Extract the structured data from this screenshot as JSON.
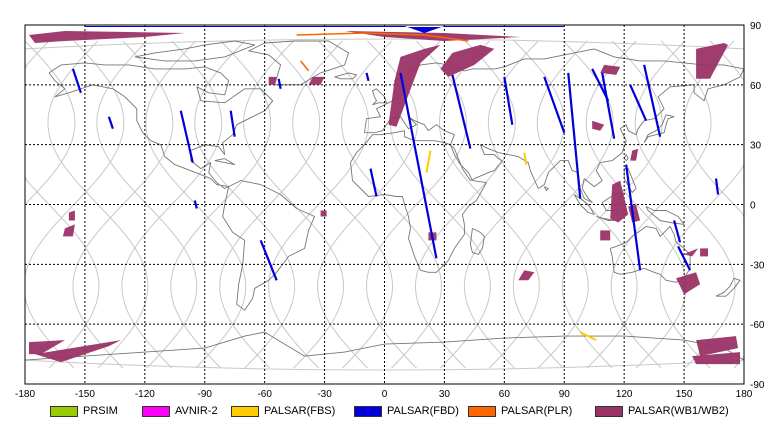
{
  "chart_data": {
    "type": "map",
    "projection": "equirectangular",
    "xlim": [
      -180,
      180
    ],
    "ylim": [
      -90,
      90
    ],
    "x_ticks": [
      "-180",
      "-150",
      "-120",
      "-90",
      "-60",
      "-30",
      "0",
      "30",
      "60",
      "90",
      "120",
      "150",
      "180"
    ],
    "y_ticks": [
      "90",
      "60",
      "30",
      "0",
      "-30",
      "-60",
      "-90"
    ],
    "grid": true,
    "legend_position": "bottom",
    "legend": [
      {
        "label": "PRSIM",
        "color": "#99cc00"
      },
      {
        "label": "AVNIR-2",
        "color": "#ff00ff"
      },
      {
        "label": "PALSAR(FBS)",
        "color": "#ffcc00"
      },
      {
        "label": "PALSAR(FBD)",
        "color": "#0000dd"
      },
      {
        "label": "PALSAR(PLR)",
        "color": "#ff6600"
      },
      {
        "label": "PALSAR(WB1/WB2)",
        "color": "#993366"
      }
    ],
    "fbd_strips": [
      [
        -156,
        68,
        -152,
        56
      ],
      [
        -138,
        44,
        -136,
        38
      ],
      [
        -102,
        47,
        -96,
        21
      ],
      [
        -77,
        47,
        -75,
        34
      ],
      [
        -62,
        -18,
        -54,
        -38
      ],
      [
        -7,
        18,
        -4,
        4
      ],
      [
        8,
        66,
        26,
        -27
      ],
      [
        34,
        65,
        43,
        28
      ],
      [
        60,
        64,
        64,
        40
      ],
      [
        80,
        64,
        90,
        36
      ],
      [
        92,
        66,
        98,
        3
      ],
      [
        104,
        68,
        112,
        52
      ],
      [
        109,
        66,
        115,
        33
      ],
      [
        123,
        60,
        131,
        42
      ],
      [
        130,
        70,
        138,
        34
      ],
      [
        121,
        20,
        128,
        -33
      ],
      [
        145,
        -8,
        148,
        -19
      ],
      [
        147,
        -21,
        153,
        -33
      ],
      [
        166,
        13,
        167,
        5
      ],
      [
        -95,
        2,
        -94,
        -2
      ],
      [
        -53,
        63,
        -52,
        58
      ],
      [
        -9,
        66,
        -8,
        62
      ]
    ],
    "wb_swaths": [
      [
        [
          -178,
          85
        ],
        [
          -160,
          87
        ],
        [
          -100,
          86
        ],
        [
          -120,
          84
        ],
        [
          -160,
          82
        ],
        [
          -175,
          81
        ]
      ],
      [
        [
          8,
          74
        ],
        [
          20,
          78
        ],
        [
          28,
          80
        ],
        [
          18,
          71
        ],
        [
          12,
          55
        ],
        [
          6,
          39
        ],
        [
          2,
          40
        ],
        [
          5,
          62
        ]
      ],
      [
        [
          34,
          76
        ],
        [
          48,
          80
        ],
        [
          55,
          78
        ],
        [
          45,
          70
        ],
        [
          32,
          64
        ],
        [
          28,
          68
        ]
      ],
      [
        [
          -20,
          87
        ],
        [
          30,
          86
        ],
        [
          68,
          84
        ],
        [
          30,
          82
        ],
        [
          0,
          84
        ]
      ],
      [
        [
          156,
          78
        ],
        [
          170,
          81
        ],
        [
          172,
          80
        ],
        [
          163,
          63
        ],
        [
          156,
          63
        ]
      ],
      [
        [
          110,
          70
        ],
        [
          118,
          69
        ],
        [
          116,
          65
        ],
        [
          108,
          66
        ]
      ],
      [
        [
          104,
          42
        ],
        [
          110,
          40
        ],
        [
          108,
          37
        ],
        [
          104,
          38
        ]
      ],
      [
        [
          124,
          27
        ],
        [
          127,
          28
        ],
        [
          126,
          22
        ],
        [
          123,
          22
        ]
      ],
      [
        [
          114,
          10
        ],
        [
          118,
          12
        ],
        [
          122,
          -5
        ],
        [
          117,
          -9
        ],
        [
          113,
          -7
        ]
      ],
      [
        [
          122,
          -1
        ],
        [
          126,
          0
        ],
        [
          128,
          -8
        ],
        [
          124,
          -9
        ]
      ],
      [
        [
          152,
          -24
        ],
        [
          157,
          -22
        ],
        [
          154,
          -26
        ],
        [
          150,
          -25
        ]
      ],
      [
        [
          -158,
          -4
        ],
        [
          -155,
          -3
        ],
        [
          -155,
          -8
        ],
        [
          -158,
          -8
        ]
      ],
      [
        [
          -160,
          -12
        ],
        [
          -155,
          -10
        ],
        [
          -156,
          -16
        ],
        [
          -161,
          -16
        ]
      ],
      [
        [
          -32,
          -3
        ],
        [
          -29,
          -3
        ],
        [
          -29,
          -6
        ],
        [
          -32,
          -6
        ]
      ],
      [
        [
          22,
          -14
        ],
        [
          26,
          -14
        ],
        [
          26,
          -18
        ],
        [
          22,
          -18
        ]
      ],
      [
        [
          108,
          -13
        ],
        [
          113,
          -13
        ],
        [
          113,
          -18
        ],
        [
          108,
          -18
        ]
      ],
      [
        [
          146,
          -37
        ],
        [
          156,
          -34
        ],
        [
          158,
          -40
        ],
        [
          150,
          -45
        ]
      ],
      [
        [
          158,
          -22
        ],
        [
          162,
          -22
        ],
        [
          162,
          -26
        ],
        [
          158,
          -26
        ]
      ],
      [
        [
          70,
          -33
        ],
        [
          75,
          -34
        ],
        [
          72,
          -38
        ],
        [
          67,
          -38
        ]
      ],
      [
        [
          -36,
          64
        ],
        [
          -30,
          64
        ],
        [
          -32,
          60
        ],
        [
          -38,
          60
        ]
      ],
      [
        [
          -58,
          64
        ],
        [
          -54,
          64
        ],
        [
          -55,
          60
        ],
        [
          -58,
          60
        ]
      ],
      [
        [
          -178,
          -69
        ],
        [
          -160,
          -68
        ],
        [
          -172,
          -75
        ],
        [
          -178,
          -75
        ]
      ],
      [
        [
          -175,
          -75
        ],
        [
          -132,
          -68
        ],
        [
          -138,
          -71
        ],
        [
          -162,
          -79
        ]
      ],
      [
        [
          156,
          -68
        ],
        [
          176,
          -66
        ],
        [
          177,
          -72
        ],
        [
          158,
          -76
        ]
      ],
      [
        [
          154,
          -76
        ],
        [
          178,
          -74
        ],
        [
          178,
          -80
        ],
        [
          156,
          -80
        ]
      ]
    ],
    "fbs_strips": [
      [
        23,
        27,
        21,
        16
      ],
      [
        70,
        26,
        71,
        20
      ],
      [
        98,
        -64,
        106,
        -68
      ]
    ],
    "plr_arcs": [
      [
        [
          -44,
          85
        ],
        [
          -10,
          86
        ],
        [
          20,
          85
        ],
        [
          42,
          82
        ]
      ],
      [
        [
          -42,
          72
        ],
        [
          -38,
          67
        ]
      ]
    ]
  }
}
